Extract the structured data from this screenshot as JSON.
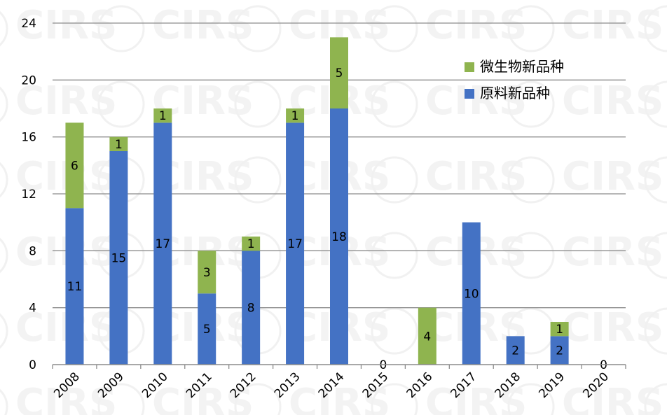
{
  "chart_data": {
    "type": "bar",
    "stacked": true,
    "categories": [
      "2008",
      "2009",
      "2010",
      "2011",
      "2012",
      "2013",
      "2014",
      "2015",
      "2016",
      "2017",
      "2018",
      "2019",
      "2020"
    ],
    "series": [
      {
        "name": "原料新品种",
        "color": "#4472C4",
        "values": [
          11,
          15,
          17,
          5,
          8,
          17,
          18,
          0,
          0,
          10,
          2,
          2,
          0
        ]
      },
      {
        "name": "微生物新品种",
        "color": "#8FB44F",
        "values": [
          6,
          1,
          1,
          3,
          1,
          1,
          5,
          0,
          4,
          0,
          0,
          1,
          0
        ]
      }
    ],
    "data_labels": [
      [
        "11",
        "15",
        "17",
        "5",
        "8",
        "17",
        "18",
        "0",
        "",
        "10",
        "2",
        "2",
        "0"
      ],
      [
        "6",
        "1",
        "1",
        "3",
        "1",
        "1",
        "5",
        "",
        "4",
        "",
        "",
        "1",
        ""
      ]
    ],
    "yticks": [
      0,
      4,
      8,
      12,
      16,
      20,
      24
    ],
    "ylim": [
      0,
      24
    ],
    "grid": true,
    "legend": {
      "position": "top-right",
      "order": [
        "微生物新品种",
        "原料新品种"
      ]
    },
    "watermark": "CIRS"
  }
}
